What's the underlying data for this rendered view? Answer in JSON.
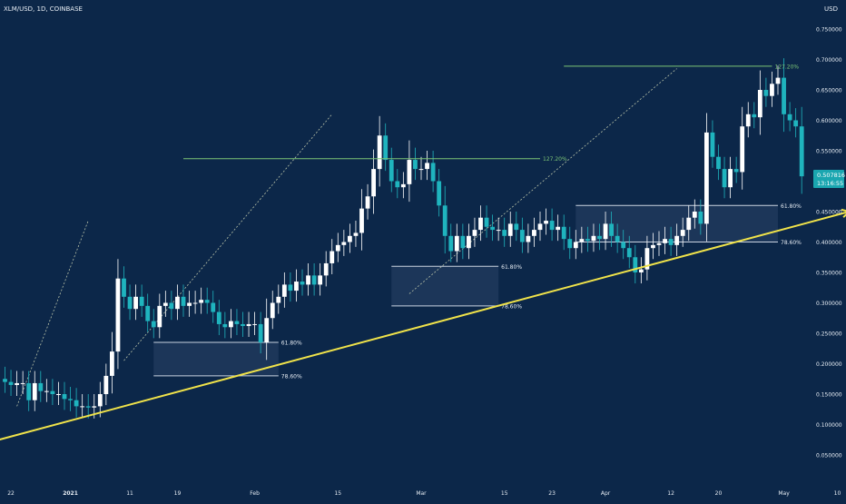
{
  "header": {
    "symbol": "XLM/USD, 1D, COINBASE",
    "currency": "USD"
  },
  "price_tag": {
    "value": "0.507816",
    "countdown": "13:16:55",
    "color": "#1aa6b0"
  },
  "theme": {
    "background": "#0c2749",
    "up_candle": "#ffffff",
    "down_candle": "#1fb4be",
    "trendline": "#f0e34a",
    "extension_line": "#7cc576",
    "fib_line": "#c9d3e0",
    "text": "#e6ecf3"
  },
  "chart_data": {
    "type": "candlestick",
    "title": "XLM/USD, 1D, COINBASE",
    "ylabel": "USD",
    "ylim": [
      0.0,
      0.78
    ],
    "x_start": "2020-12-21",
    "y_ticks": [
      0.05,
      0.1,
      0.15,
      0.2,
      0.25,
      0.3,
      0.35,
      0.4,
      0.45,
      0.5,
      0.55,
      0.6,
      0.65,
      0.7,
      0.75
    ],
    "y_tick_labels": [
      "0.050000",
      "0.100000",
      "0.150000",
      "0.200000",
      "0.250000",
      "0.300000",
      "0.350000",
      "0.400000",
      "0.450000",
      "0.500000",
      "0.550000",
      "0.600000",
      "0.650000",
      "0.700000",
      "0.750000"
    ],
    "x_ticks": [
      {
        "label": "22",
        "date": "2020-12-22"
      },
      {
        "label": "2021",
        "date": "2021-01-01",
        "bold": true
      },
      {
        "label": "11",
        "date": "2021-01-11"
      },
      {
        "label": "19",
        "date": "2021-01-19"
      },
      {
        "label": "Feb",
        "date": "2021-02-01"
      },
      {
        "label": "15",
        "date": "2021-02-15"
      },
      {
        "label": "Mar",
        "date": "2021-03-01"
      },
      {
        "label": "15",
        "date": "2021-03-15"
      },
      {
        "label": "23",
        "date": "2021-03-23"
      },
      {
        "label": "Apr",
        "date": "2021-04-01"
      },
      {
        "label": "12",
        "date": "2021-04-12"
      },
      {
        "label": "20",
        "date": "2021-04-20"
      },
      {
        "label": "May",
        "date": "2021-05-01"
      },
      {
        "label": "10",
        "date": "2021-05-10"
      }
    ],
    "closes": [
      0.17,
      0.165,
      0.168,
      0.168,
      0.14,
      0.168,
      0.155,
      0.155,
      0.15,
      0.15,
      0.142,
      0.14,
      0.13,
      0.13,
      0.128,
      0.13,
      0.15,
      0.18,
      0.22,
      0.34,
      0.31,
      0.29,
      0.31,
      0.295,
      0.27,
      0.26,
      0.295,
      0.3,
      0.29,
      0.31,
      0.295,
      0.3,
      0.3,
      0.305,
      0.3,
      0.285,
      0.265,
      0.26,
      0.27,
      0.265,
      0.262,
      0.265,
      0.265,
      0.235,
      0.275,
      0.3,
      0.31,
      0.33,
      0.32,
      0.335,
      0.33,
      0.345,
      0.33,
      0.345,
      0.365,
      0.385,
      0.395,
      0.4,
      0.41,
      0.415,
      0.455,
      0.475,
      0.52,
      0.575,
      0.535,
      0.5,
      0.49,
      0.495,
      0.535,
      0.52,
      0.52,
      0.53,
      0.5,
      0.46,
      0.41,
      0.385,
      0.41,
      0.39,
      0.41,
      0.42,
      0.44,
      0.425,
      0.42,
      0.42,
      0.41,
      0.43,
      0.42,
      0.4,
      0.41,
      0.42,
      0.43,
      0.435,
      0.42,
      0.425,
      0.405,
      0.39,
      0.4,
      0.405,
      0.402,
      0.41,
      0.405,
      0.43,
      0.41,
      0.4,
      0.39,
      0.375,
      0.35,
      0.355,
      0.39,
      0.395,
      0.398,
      0.405,
      0.395,
      0.41,
      0.42,
      0.44,
      0.45,
      0.43,
      0.58,
      0.54,
      0.52,
      0.49,
      0.52,
      0.515,
      0.59,
      0.61,
      0.605,
      0.65,
      0.64,
      0.66,
      0.67,
      0.61,
      0.6,
      0.59,
      0.508
    ],
    "trendline": {
      "start": [
        "2020-12-20",
        0.075
      ],
      "end": [
        "2021-05-12",
        0.45
      ],
      "arrow": true
    },
    "extension_lines": [
      {
        "label": "127.20%",
        "level": 0.537,
        "from": "2021-01-20",
        "to": "2021-03-21"
      },
      {
        "label": "127.20%",
        "level": 0.689,
        "from": "2021-03-25",
        "to": "2021-04-29"
      }
    ],
    "fib_zones": [
      {
        "from": "2021-01-15",
        "to": "2021-02-05",
        "top": 0.235,
        "bottom": 0.18,
        "top_label": "61.80%",
        "bottom_label": "78.60%"
      },
      {
        "from": "2021-02-24",
        "to": "2021-03-14",
        "top": 0.36,
        "bottom": 0.295,
        "top_label": "61.80%",
        "bottom_label": "78.60%"
      },
      {
        "from": "2021-03-27",
        "to": "2021-04-30",
        "top": 0.46,
        "bottom": 0.4,
        "top_label": "61.80%",
        "bottom_label": "78.60%"
      }
    ],
    "dashed_projections": [
      {
        "start": [
          "2020-12-23",
          0.13
        ],
        "end": [
          "2021-01-04",
          0.435
        ]
      },
      {
        "start": [
          "2021-01-10",
          0.205
        ],
        "end": [
          "2021-02-14",
          0.61
        ]
      },
      {
        "start": [
          "2021-02-27",
          0.315
        ],
        "end": [
          "2021-04-13",
          0.685
        ]
      }
    ]
  }
}
